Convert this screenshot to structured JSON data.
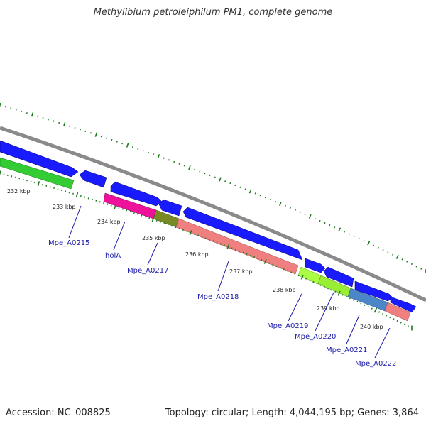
{
  "title": "Methylibium petroleiphilum PM1, complete genome",
  "footer": {
    "accession": "Accession: NC_008825",
    "summary": "Topology: circular; Length: 4,044,195 bp; Genes: 3,864"
  },
  "colors": {
    "backbone": "#8a8a8a",
    "tick_dots": "#1f7a1f",
    "gene_label": "#1a1aa8",
    "cds_blue": "#1a1aff"
  },
  "ticks": [
    {
      "label": "232 kbp",
      "kbp": 232
    },
    {
      "label": "233 kbp",
      "kbp": 233
    },
    {
      "label": "234 kbp",
      "kbp": 234
    },
    {
      "label": "235 kbp",
      "kbp": 235
    },
    {
      "label": "236 kbp",
      "kbp": 236
    },
    {
      "label": "237 kbp",
      "kbp": 237
    },
    {
      "label": "238 kbp",
      "kbp": 238
    },
    {
      "label": "239 kbp",
      "kbp": 239
    },
    {
      "label": "240 kbp",
      "kbp": 240
    }
  ],
  "gene_labels": [
    {
      "text": "Mpe_A0215"
    },
    {
      "text": "holA"
    },
    {
      "text": "Mpe_A0217"
    },
    {
      "text": "Mpe_A0218"
    },
    {
      "text": "Mpe_A0219"
    },
    {
      "text": "Mpe_A0220"
    },
    {
      "text": "Mpe_A0221"
    },
    {
      "text": "Mpe_A0222"
    }
  ]
}
